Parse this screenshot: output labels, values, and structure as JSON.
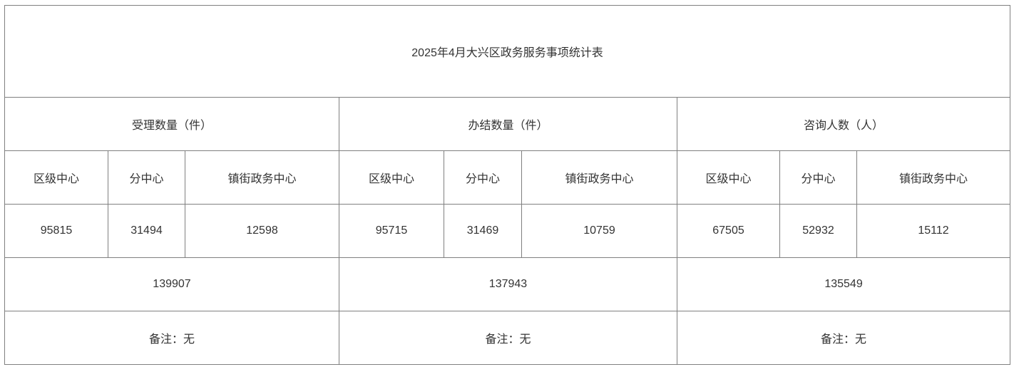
{
  "title": "2025年4月大兴区政务服务事项统计表",
  "groups": [
    "受理数量（件）",
    "办结数量（件）",
    "咨询人数（人）"
  ],
  "subheaders": [
    "区级中心",
    "分中心",
    "镇街政务中心",
    "区级中心",
    "分中心",
    "镇街政务中心",
    "区级中心",
    "分中心",
    "镇街政务中心"
  ],
  "values": [
    "95815",
    "31494",
    "12598",
    "95715",
    "31469",
    "10759",
    "67505",
    "52932",
    "15112"
  ],
  "totals": [
    "139907",
    "137943",
    "135549"
  ],
  "remarks": [
    "备注：无",
    "备注：无",
    "备注：无"
  ]
}
